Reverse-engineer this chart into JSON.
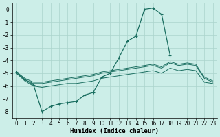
{
  "xlabel": "Humidex (Indice chaleur)",
  "bg_color": "#cceee8",
  "grid_color": "#aad4cc",
  "line_color": "#1a6e60",
  "x_all": [
    0,
    1,
    2,
    3,
    4,
    5,
    6,
    7,
    8,
    9,
    10,
    11,
    12,
    13,
    14,
    15,
    16,
    17,
    18,
    19,
    20,
    21,
    22,
    23
  ],
  "curve_x": [
    0,
    1,
    2,
    3,
    4,
    5,
    6,
    7,
    8,
    9,
    10,
    11,
    12,
    13,
    14,
    15,
    16,
    17,
    18
  ],
  "curve_y": [
    -4.9,
    -5.5,
    -5.9,
    -8.0,
    -7.6,
    -7.4,
    -7.3,
    -7.2,
    -6.7,
    -6.5,
    -5.3,
    -5.0,
    -3.8,
    -2.5,
    -2.1,
    0.0,
    0.1,
    -0.4,
    -3.6
  ],
  "line_upper": [
    -4.9,
    -5.4,
    -5.7,
    -5.7,
    -5.6,
    -5.5,
    -5.4,
    -5.3,
    -5.2,
    -5.1,
    -4.9,
    -4.8,
    -4.7,
    -4.6,
    -4.5,
    -4.4,
    -4.3,
    -4.5,
    -4.1,
    -4.3,
    -4.2,
    -4.3,
    -5.3,
    -5.6
  ],
  "line_mid": [
    -5.0,
    -5.5,
    -5.8,
    -5.8,
    -5.7,
    -5.6,
    -5.5,
    -5.4,
    -5.3,
    -5.2,
    -5.0,
    -4.9,
    -4.8,
    -4.7,
    -4.6,
    -4.5,
    -4.4,
    -4.6,
    -4.2,
    -4.4,
    -4.3,
    -4.4,
    -5.4,
    -5.7
  ],
  "line_lower": [
    -5.0,
    -5.6,
    -6.0,
    -6.1,
    -6.0,
    -5.9,
    -5.8,
    -5.8,
    -5.7,
    -5.6,
    -5.4,
    -5.3,
    -5.2,
    -5.1,
    -5.0,
    -4.9,
    -4.8,
    -5.0,
    -4.6,
    -4.8,
    -4.7,
    -4.8,
    -5.7,
    -5.8
  ],
  "xlim": [
    -0.5,
    23.5
  ],
  "ylim": [
    -8.5,
    0.5
  ],
  "yticks": [
    0,
    -1,
    -2,
    -3,
    -4,
    -5,
    -6,
    -7,
    -8
  ],
  "xticks": [
    0,
    1,
    2,
    3,
    4,
    5,
    6,
    7,
    8,
    9,
    10,
    11,
    12,
    13,
    14,
    15,
    16,
    17,
    18,
    19,
    20,
    21,
    22,
    23
  ]
}
